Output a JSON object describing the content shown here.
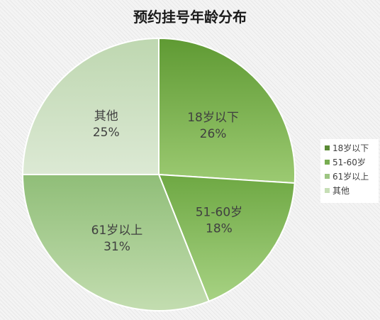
{
  "chart_data": {
    "type": "pie",
    "title": "预约挂号年龄分布",
    "categories": [
      "18岁以下",
      "51-60岁",
      "61岁以上",
      "其他"
    ],
    "values": [
      26,
      18,
      31,
      25
    ],
    "value_labels": [
      "26%",
      "18%",
      "31%",
      "25%"
    ],
    "start_angle_deg": 0,
    "direction": "clockwise",
    "colors": [
      [
        "#5f9a33",
        "#9cca72"
      ],
      [
        "#6ea843",
        "#a7d283"
      ],
      [
        "#90be78",
        "#c3ddb0"
      ],
      [
        "#bed7b0",
        "#dce9d4"
      ]
    ],
    "legend": {
      "position": "right",
      "colors": [
        "#5a8a35",
        "#78ad51",
        "#9dc582",
        "#c6deb6"
      ]
    }
  }
}
